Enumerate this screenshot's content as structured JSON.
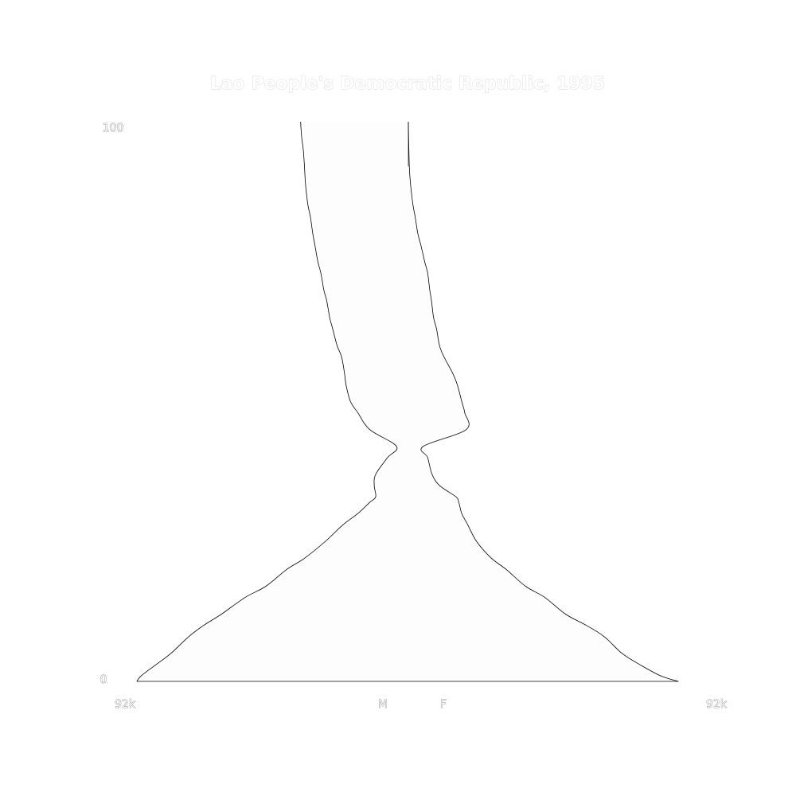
{
  "chart_data": {
    "type": "area",
    "title": "Lao People's Democratic Republic, 1995",
    "subtitle": "",
    "xlabel": "",
    "ylabel": "",
    "y_tick_labels": {
      "top": "100",
      "bottom": "0"
    },
    "x_tick_labels": {
      "left": "92k",
      "right": "92k"
    },
    "side_labels": {
      "male": "M",
      "female": "F"
    },
    "ylim": [
      0,
      100
    ],
    "xlim": [
      -92000,
      92000
    ],
    "grid": false,
    "legend": "none",
    "colors": {
      "fill": "#fdfdfd",
      "stroke": "#000000",
      "background": "#ffffff"
    },
    "ages": [
      0,
      1,
      3,
      5,
      8,
      10,
      12,
      15,
      17,
      20,
      22,
      25,
      28,
      30,
      32,
      33,
      35,
      37,
      40,
      42,
      45,
      48,
      50,
      53,
      55,
      58,
      60,
      63,
      65,
      68,
      70,
      73,
      75,
      78,
      80,
      83,
      85,
      88,
      90,
      92,
      95,
      97,
      99,
      100
    ],
    "series": [
      {
        "name": "M",
        "values": [
          91500,
          90000,
          85000,
          80000,
          74000,
          69000,
          63000,
          55000,
          48000,
          41000,
          35000,
          28000,
          22000,
          17000,
          13000,
          11000,
          11500,
          11000,
          7000,
          4000,
          13000,
          17000,
          19500,
          21000,
          21500,
          22500,
          24000,
          25500,
          26500,
          27500,
          28500,
          29500,
          30500,
          31500,
          32200,
          33000,
          33800,
          34500,
          34800,
          35000,
          35400,
          35900,
          36200,
          36300
        ]
      },
      {
        "name": "F",
        "values": [
          91000,
          85000,
          78000,
          72000,
          66000,
          60000,
          53000,
          46000,
          39500,
          33000,
          28000,
          23000,
          20000,
          18000,
          17000,
          16000,
          10500,
          8000,
          6500,
          5000,
          19500,
          19000,
          18000,
          16500,
          15000,
          12000,
          10500,
          9500,
          8500,
          7800,
          7200,
          6500,
          5500,
          4200,
          3200,
          2300,
          1600,
          900,
          550,
          330,
          180,
          90,
          25,
          0
        ]
      }
    ]
  }
}
